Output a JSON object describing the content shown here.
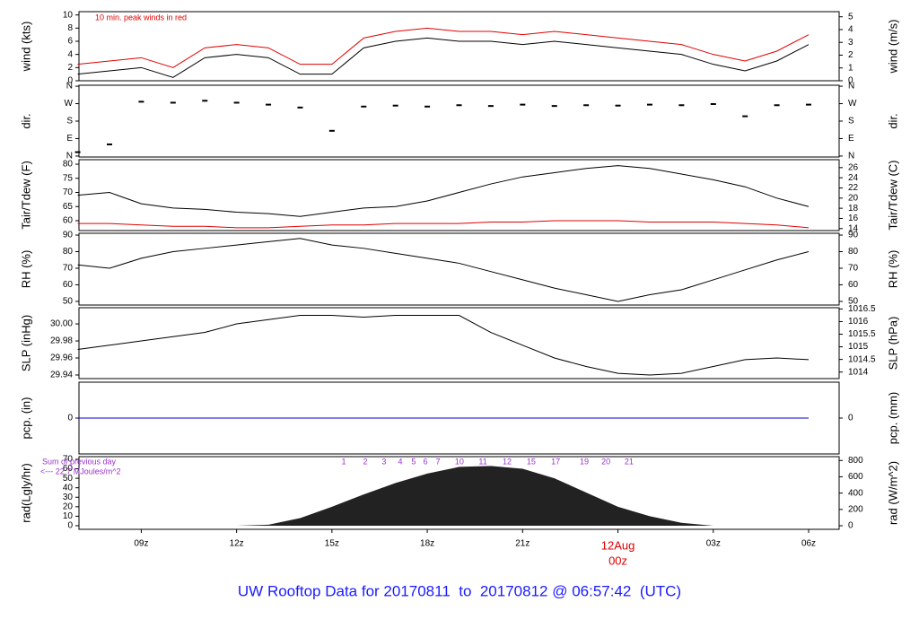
{
  "title": "UW Rooftop Data for 20170811  to  20170812 @ 06:57:42  (UTC)",
  "title_color": "#1a1aff",
  "chart_data": [
    {
      "type": "line",
      "ylabel": "wind (kts)",
      "y2label": "wind (m/s)",
      "annotation": "10 min. peak winds in red",
      "annotation_color": "#e00000",
      "xlim": [
        7.04,
        30.96
      ],
      "x": [
        7,
        8,
        9,
        10,
        11,
        12,
        13,
        14,
        15,
        16,
        17,
        18,
        19,
        20,
        21,
        22,
        23,
        24,
        25,
        26,
        27,
        28,
        29,
        30
      ],
      "ylim": [
        0,
        10.5
      ],
      "yticks": [
        0,
        2,
        4,
        6,
        8,
        10
      ],
      "y2lim": [
        0,
        5.4
      ],
      "y2ticks": [
        0,
        1,
        2,
        3,
        4,
        5
      ],
      "series": [
        {
          "name": "wind",
          "color": "#000000",
          "values": [
            1,
            1.5,
            2,
            0.5,
            3.5,
            4,
            3.5,
            1,
            1,
            5,
            6,
            6.5,
            6,
            6,
            5.5,
            6,
            5.5,
            5,
            4.5,
            4,
            2.5,
            1.5,
            3,
            5.5
          ]
        },
        {
          "name": "peak",
          "color": "#e00000",
          "values": [
            2.5,
            3,
            3.5,
            2,
            5,
            5.5,
            5,
            2.5,
            2.5,
            6.5,
            7.5,
            8,
            7.5,
            7.5,
            7,
            7.5,
            7,
            6.5,
            6,
            5.5,
            4,
            3,
            4.5,
            7
          ]
        }
      ]
    },
    {
      "type": "scatter",
      "ylabel": "dir.",
      "y2label": "dir.",
      "xlim": [
        7.04,
        30.96
      ],
      "x": [
        7,
        8,
        9,
        10,
        11,
        12,
        13,
        14,
        15,
        16,
        17,
        18,
        19,
        20,
        21,
        22,
        23,
        24,
        25,
        26,
        27,
        28,
        29,
        30
      ],
      "ylim": [
        -5,
        365
      ],
      "yticks": [
        {
          "value": 0,
          "label": "N"
        },
        {
          "value": 90,
          "label": "E"
        },
        {
          "value": 180,
          "label": "S"
        },
        {
          "value": 270,
          "label": "W"
        },
        {
          "value": 360,
          "label": "N"
        }
      ],
      "series": [
        {
          "name": "dir",
          "color": "#000000",
          "values": [
            20,
            60,
            280,
            275,
            285,
            275,
            265,
            250,
            130,
            255,
            260,
            255,
            262,
            258,
            265,
            258,
            262,
            260,
            265,
            262,
            268,
            205,
            262,
            265
          ]
        }
      ]
    },
    {
      "type": "line",
      "ylabel": "Tair/Tdew (F)",
      "y2label": "Tair/Tdew (C)",
      "xlim": [
        7.04,
        30.96
      ],
      "x": [
        7,
        8,
        9,
        10,
        11,
        12,
        13,
        14,
        15,
        16,
        17,
        18,
        19,
        20,
        21,
        22,
        23,
        24,
        25,
        26,
        27,
        28,
        29,
        30
      ],
      "ylim": [
        56.5,
        81.6
      ],
      "yticks": [
        60,
        65,
        70,
        75,
        80
      ],
      "y2lim": [
        13.61,
        27.56
      ],
      "y2ticks": [
        14,
        16,
        18,
        20,
        22,
        24,
        26
      ],
      "series": [
        {
          "name": "Tair",
          "color": "#000000",
          "values": [
            69,
            70,
            66,
            64.5,
            64,
            63,
            62.5,
            61.5,
            63,
            64.5,
            65,
            67,
            70,
            73,
            75.5,
            77,
            78.5,
            79.5,
            78.5,
            76.5,
            74.5,
            72,
            68,
            65
          ]
        },
        {
          "name": "Tdew",
          "color": "#e00000",
          "values": [
            59,
            59,
            58.5,
            58,
            58,
            57.5,
            57.5,
            58,
            58.5,
            58.5,
            59,
            59,
            59,
            59.5,
            59.5,
            60,
            60,
            60,
            59.5,
            59.5,
            59.5,
            59,
            58.5,
            57.5
          ]
        }
      ]
    },
    {
      "type": "line",
      "ylabel": "RH (%)",
      "y2label": "RH (%)",
      "xlim": [
        7.04,
        30.96
      ],
      "x": [
        7,
        8,
        9,
        10,
        11,
        12,
        13,
        14,
        15,
        16,
        17,
        18,
        19,
        20,
        21,
        22,
        23,
        24,
        25,
        26,
        27,
        28,
        29,
        30
      ],
      "ylim": [
        47.8,
        91.1
      ],
      "yticks": [
        50,
        60,
        70,
        80,
        90
      ],
      "series": [
        {
          "name": "RH",
          "color": "#000000",
          "values": [
            72,
            70,
            76,
            80,
            82,
            84,
            86,
            88,
            84,
            82,
            79,
            76,
            73,
            68,
            63,
            58,
            54,
            50,
            54,
            57,
            63,
            69,
            75,
            80
          ]
        }
      ]
    },
    {
      "type": "line",
      "ylabel": "SLP (inHg)",
      "y2label": "SLP (hPa)",
      "xlim": [
        7.04,
        30.96
      ],
      "x": [
        7,
        8,
        9,
        10,
        11,
        12,
        13,
        14,
        15,
        16,
        17,
        18,
        19,
        20,
        21,
        22,
        23,
        24,
        25,
        26,
        27,
        28,
        29,
        30
      ],
      "ylim": [
        29.9358,
        30.019
      ],
      "yticks": [
        29.94,
        29.96,
        29.98,
        {
          "value": 30.0,
          "label": "30.00"
        }
      ],
      "y2lim": [
        1013.74,
        1016.55
      ],
      "y2ticks": [
        1014,
        1014.5,
        1015,
        1015.5,
        1016,
        1016.5
      ],
      "series": [
        {
          "name": "SLP",
          "color": "#000000",
          "values": [
            29.97,
            29.975,
            29.98,
            29.985,
            29.99,
            30.0,
            30.005,
            30.01,
            30.01,
            30.008,
            30.01,
            30.01,
            30.01,
            29.99,
            29.975,
            29.96,
            29.95,
            29.942,
            29.94,
            29.942,
            29.95,
            29.958,
            29.96,
            29.958
          ]
        }
      ]
    },
    {
      "type": "line",
      "ylabel": "pcp. (in)",
      "y2label": "pcp. (mm)",
      "xlim": [
        7.04,
        30.96
      ],
      "x": [
        7,
        8,
        9,
        10,
        11,
        12,
        13,
        14,
        15,
        16,
        17,
        18,
        19,
        20,
        21,
        22,
        23,
        24,
        25,
        26,
        27,
        28,
        29,
        30
      ],
      "ylim": [
        -1,
        1
      ],
      "yticks": [
        0
      ],
      "series": [
        {
          "name": "pcp",
          "color": "#0000cc",
          "values": [
            0,
            0,
            0,
            0,
            0,
            0,
            0,
            0,
            0,
            0,
            0,
            0,
            0,
            0,
            0,
            0,
            0,
            0,
            0,
            0,
            0,
            0,
            0,
            0
          ]
        }
      ]
    },
    {
      "type": "area",
      "ylabel": "rad(Lgly/hr)",
      "y2label": "rad (W/m^2)",
      "notes": [
        "Sum of previous day",
        "<--- 22.7 MJoules/m^2"
      ],
      "notes_color": "#9b30d0",
      "hour_labels": [
        {
          "label": "1",
          "x": 15.37
        },
        {
          "label": "2",
          "x": 16.05
        },
        {
          "label": "3",
          "x": 16.64
        },
        {
          "label": "4",
          "x": 17.15
        },
        {
          "label": "5",
          "x": 17.57
        },
        {
          "label": "6",
          "x": 17.94
        },
        {
          "label": "7",
          "x": 18.34
        },
        {
          "label": "10",
          "x": 19.01
        },
        {
          "label": "11",
          "x": 19.75
        },
        {
          "label": "12",
          "x": 20.51
        },
        {
          "label": "15",
          "x": 21.27
        },
        {
          "label": "17",
          "x": 22.04
        },
        {
          "label": "19",
          "x": 22.94
        },
        {
          "label": "20",
          "x": 23.62
        },
        {
          "label": "21",
          "x": 24.35
        }
      ],
      "xlim": [
        7.04,
        30.96
      ],
      "x": [
        7,
        8,
        9,
        10,
        11,
        12,
        13,
        14,
        15,
        16,
        17,
        18,
        19,
        20,
        21,
        22,
        23,
        24,
        25,
        26,
        27,
        28,
        29,
        30
      ],
      "xticks": [
        {
          "value": 9,
          "label": "09z"
        },
        {
          "value": 12,
          "label": "12z"
        },
        {
          "value": 15,
          "label": "15z"
        },
        {
          "value": 18,
          "label": "18z"
        },
        {
          "value": 21,
          "label": "21z"
        },
        {
          "value": 24,
          "label": "00z"
        },
        {
          "value": 27,
          "label": "03z"
        },
        {
          "value": 30,
          "label": "06z"
        }
      ],
      "x_annotation": {
        "x": 24,
        "text": "12Aug"
      },
      "x_annotation_color": "#e00000",
      "ylim": [
        -3.8,
        72.8
      ],
      "yticks": [
        0,
        10,
        20,
        30,
        40,
        50,
        60,
        70
      ],
      "y2lim": [
        -44,
        847
      ],
      "y2ticks": [
        0,
        200,
        400,
        600,
        800
      ],
      "series": [
        {
          "name": "rad",
          "color": "#222222",
          "values": [
            0,
            0,
            0,
            0,
            0,
            0,
            1,
            8,
            20,
            33,
            45,
            55,
            62,
            63,
            60,
            50,
            35,
            20,
            10,
            3,
            0,
            0,
            0,
            0
          ]
        }
      ]
    }
  ]
}
